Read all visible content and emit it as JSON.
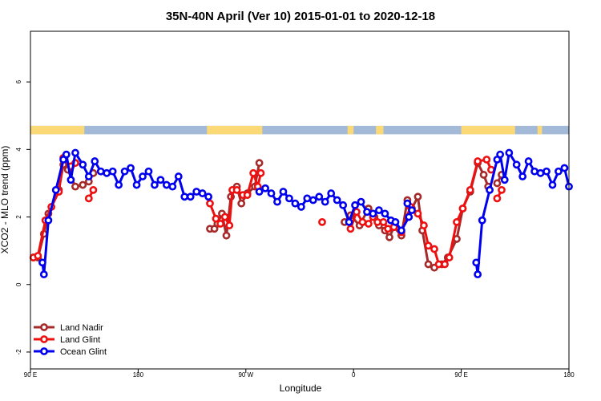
{
  "chart_data": {
    "type": "line",
    "title": "35N-40N April (Ver 10)   2015-01-01 to 2020-12-18",
    "xlabel": "Longitude",
    "ylabel": "XCO2 - MLO trend (ppm)",
    "xlim": [
      0,
      360
    ],
    "ylim": [
      -2.5,
      7.5
    ],
    "x_ticks": [
      {
        "pos": 0,
        "label": "90 E"
      },
      {
        "pos": 72,
        "label": "180"
      },
      {
        "pos": 144,
        "label": "90 W"
      },
      {
        "pos": 216,
        "label": "0"
      },
      {
        "pos": 288,
        "label": "90 E"
      },
      {
        "pos": 360,
        "label": "180"
      }
    ],
    "y_ticks": [
      -2,
      0,
      2,
      4,
      6
    ],
    "grid": false,
    "legend_position": "bottom-left",
    "land_band": {
      "y_range": [
        4.45,
        4.7
      ],
      "ocean_color": "#a2b9d8",
      "land_color": "#fcd977",
      "land_segments": [
        [
          0,
          36
        ],
        [
          118,
          155
        ],
        [
          212,
          216
        ],
        [
          231,
          236
        ],
        [
          288,
          324
        ],
        [
          339,
          342
        ]
      ]
    },
    "series": [
      {
        "name": "Land Nadir",
        "color": "#a52a2a",
        "segments": [
          [
            [
              2,
              0.8
            ],
            [
              5,
              0.8
            ],
            [
              9,
              1.5
            ],
            [
              12,
              2.1
            ],
            [
              19,
              2.8
            ],
            [
              22,
              3.55
            ],
            [
              25,
              3.4
            ],
            [
              30,
              2.9
            ],
            [
              35,
              2.95
            ],
            [
              39,
              3.05
            ],
            [
              42,
              3.3
            ]
          ],
          [
            [
              120,
              1.65
            ],
            [
              123,
              1.65
            ],
            [
              125,
              1.8
            ],
            [
              128,
              2.1
            ],
            [
              131,
              1.45
            ],
            [
              134,
              2.6
            ],
            [
              138,
              2.9
            ],
            [
              141,
              2.4
            ],
            [
              145,
              2.7
            ],
            [
              150,
              2.9
            ],
            [
              153,
              3.6
            ]
          ],
          [
            [
              210,
              1.85
            ],
            [
              214,
              2.05
            ],
            [
              220,
              1.75
            ],
            [
              226,
              2.25
            ],
            [
              230,
              2.0
            ],
            [
              233,
              1.75
            ],
            [
              237,
              1.6
            ],
            [
              240,
              1.4
            ],
            [
              243,
              1.7
            ],
            [
              248,
              1.45
            ],
            [
              252,
              2.5
            ],
            [
              255,
              2.25
            ],
            [
              259,
              2.6
            ],
            [
              262,
              1.6
            ],
            [
              266,
              0.6
            ],
            [
              270,
              0.5
            ],
            [
              275,
              0.6
            ],
            [
              279,
              0.8
            ],
            [
              285,
              1.35
            ],
            [
              289,
              2.25
            ],
            [
              294,
              2.75
            ],
            [
              299,
              3.6
            ],
            [
              303,
              3.25
            ],
            [
              306,
              2.9
            ]
          ],
          [
            [
              312,
              3.0
            ],
            [
              315,
              3.25
            ]
          ]
        ]
      },
      {
        "name": "Land Glint",
        "color": "#ee1010",
        "segments": [
          [
            [
              2,
              0.8
            ],
            [
              5,
              0.85
            ],
            [
              10,
              1.9
            ],
            [
              14,
              2.3
            ],
            [
              19,
              2.75
            ],
            [
              22,
              3.75
            ],
            [
              27,
              3.5
            ],
            [
              30,
              3.6
            ]
          ],
          [
            [
              39,
              2.55
            ],
            [
              42,
              2.8
            ]
          ],
          [
            [
              120,
              2.4
            ],
            [
              124,
              1.95
            ],
            [
              127,
              1.8
            ],
            [
              130,
              2.0
            ],
            [
              133,
              1.75
            ],
            [
              135,
              2.8
            ],
            [
              138,
              2.8
            ],
            [
              142,
              2.65
            ],
            [
              145,
              2.65
            ],
            [
              149,
              3.3
            ],
            [
              152,
              2.9
            ],
            [
              154,
              3.3
            ]
          ],
          [
            [
              195,
              1.85
            ]
          ],
          [
            [
              214,
              1.65
            ],
            [
              218,
              2.15
            ],
            [
              222,
              1.85
            ],
            [
              226,
              1.8
            ],
            [
              229,
              2.0
            ],
            [
              232,
              1.85
            ],
            [
              236,
              1.85
            ],
            [
              239,
              1.65
            ],
            [
              243,
              1.7
            ],
            [
              248,
              1.55
            ],
            [
              254,
              2.3
            ],
            [
              259,
              2.1
            ],
            [
              263,
              1.75
            ],
            [
              266,
              1.15
            ],
            [
              270,
              1.05
            ],
            [
              273,
              0.6
            ],
            [
              277,
              0.6
            ],
            [
              280,
              0.8
            ],
            [
              285,
              1.85
            ],
            [
              289,
              2.25
            ],
            [
              294,
              2.8
            ],
            [
              299,
              3.65
            ],
            [
              305,
              3.7
            ],
            [
              308,
              3.4
            ]
          ],
          [
            [
              312,
              2.55
            ],
            [
              315,
              2.8
            ]
          ]
        ]
      },
      {
        "name": "Ocean Glint",
        "color": "#0000ee",
        "segments": [
          [
            [
              8,
              0.65
            ],
            [
              9,
              0.3
            ],
            [
              12,
              1.9
            ],
            [
              17,
              2.8
            ],
            [
              22,
              3.7
            ],
            [
              24,
              3.85
            ],
            [
              27,
              3.1
            ],
            [
              30,
              3.9
            ],
            [
              35,
              3.55
            ],
            [
              39,
              3.2
            ],
            [
              43,
              3.65
            ],
            [
              47,
              3.35
            ],
            [
              51,
              3.3
            ],
            [
              55,
              3.35
            ],
            [
              59,
              2.95
            ],
            [
              63,
              3.35
            ],
            [
              67,
              3.45
            ],
            [
              71,
              2.95
            ],
            [
              75,
              3.2
            ],
            [
              79,
              3.35
            ],
            [
              83,
              2.95
            ],
            [
              87,
              3.1
            ],
            [
              91,
              2.95
            ],
            [
              95,
              2.9
            ],
            [
              99,
              3.2
            ],
            [
              103,
              2.6
            ],
            [
              107,
              2.6
            ],
            [
              111,
              2.75
            ],
            [
              115,
              2.7
            ],
            [
              119,
              2.6
            ]
          ],
          [
            [
              153,
              2.75
            ],
            [
              157,
              2.85
            ],
            [
              161,
              2.7
            ],
            [
              165,
              2.45
            ],
            [
              169,
              2.75
            ],
            [
              173,
              2.55
            ],
            [
              177,
              2.4
            ],
            [
              181,
              2.3
            ],
            [
              185,
              2.55
            ],
            [
              189,
              2.5
            ],
            [
              193,
              2.6
            ],
            [
              197,
              2.45
            ],
            [
              201,
              2.7
            ],
            [
              205,
              2.5
            ],
            [
              209,
              2.35
            ],
            [
              213,
              1.85
            ],
            [
              217,
              2.35
            ],
            [
              221,
              2.45
            ],
            [
              225,
              2.15
            ],
            [
              229,
              2.1
            ],
            [
              233,
              2.2
            ],
            [
              237,
              2.1
            ],
            [
              241,
              1.9
            ],
            [
              244,
              1.85
            ],
            [
              248,
              1.6
            ],
            [
              253,
              2.0
            ]
          ],
          [
            [
              252,
              2.4
            ],
            [
              255,
              2.2
            ]
          ],
          [
            [
              298,
              0.65
            ],
            [
              299,
              0.3
            ],
            [
              302,
              1.9
            ],
            [
              307,
              2.8
            ],
            [
              312,
              3.7
            ],
            [
              314,
              3.85
            ],
            [
              317,
              3.1
            ],
            [
              320,
              3.9
            ],
            [
              325,
              3.55
            ],
            [
              329,
              3.2
            ],
            [
              333,
              3.65
            ],
            [
              337,
              3.35
            ],
            [
              341,
              3.3
            ],
            [
              345,
              3.35
            ],
            [
              349,
              2.95
            ],
            [
              353,
              3.35
            ],
            [
              357,
              3.45
            ],
            [
              360,
              2.9
            ]
          ]
        ]
      }
    ]
  }
}
